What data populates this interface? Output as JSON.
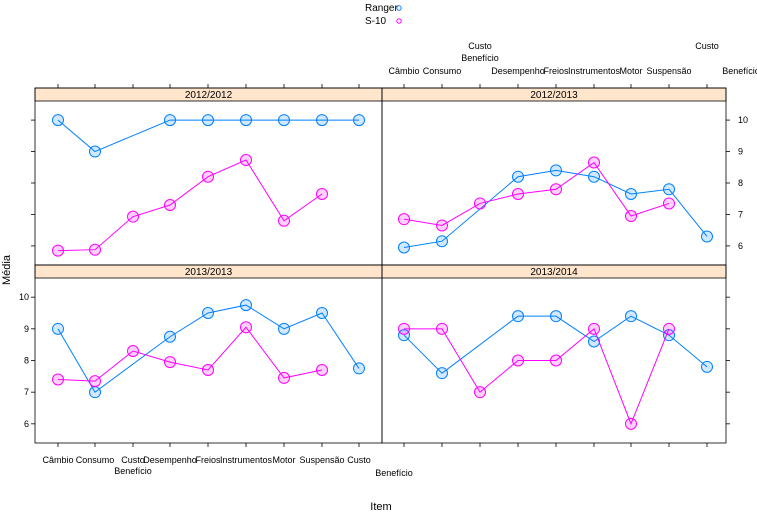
{
  "chart_data": {
    "type": "line",
    "xlabel": "Item",
    "ylabel": "Média",
    "ylim": [
      5.6,
      10.4
    ],
    "y_ticks": [
      6,
      7,
      8,
      9,
      10
    ],
    "categories_top": [
      "Câmbio",
      "Consumo",
      "Custo Benefício",
      "Desempenho",
      "Freios",
      "Instrumentos",
      "Motor",
      "Suspensão",
      "Custo Benefício"
    ],
    "categories_bottom": [
      "Câmbio",
      "Consumo",
      "Custo Benefício",
      "Desempenho",
      "Freios",
      "Instrumentos",
      "Motor",
      "Suspensão",
      "Custo Benefício"
    ],
    "legend": {
      "placement": "top-center",
      "entries": [
        {
          "name": "Ranger",
          "color": "#0080ff"
        },
        {
          "name": "S-10",
          "color": "#ff00ff"
        }
      ]
    },
    "panels": [
      {
        "title": "2012/2012",
        "series": [
          {
            "name": "Ranger",
            "values": [
              10,
              9,
              null,
              10,
              10,
              10,
              10,
              10,
              10
            ]
          },
          {
            "name": "S-10",
            "values": [
              5.85,
              5.88,
              6.93,
              7.3,
              8.2,
              8.73,
              6.8,
              7.65,
              null
            ]
          }
        ]
      },
      {
        "title": "2012/2013",
        "series": [
          {
            "name": "Ranger",
            "values": [
              5.95,
              6.15,
              null,
              8.2,
              8.4,
              8.2,
              7.65,
              7.8,
              6.3
            ]
          },
          {
            "name": "S-10",
            "values": [
              6.85,
              6.65,
              7.35,
              7.65,
              7.8,
              8.65,
              6.95,
              7.35,
              null
            ]
          }
        ]
      },
      {
        "title": "2013/2013",
        "series": [
          {
            "name": "Ranger",
            "values": [
              9,
              7,
              null,
              8.75,
              9.5,
              9.75,
              9,
              9.5,
              7.75
            ]
          },
          {
            "name": "S-10",
            "values": [
              7.4,
              7.35,
              8.3,
              7.95,
              7.7,
              9.05,
              7.45,
              7.7,
              null
            ]
          }
        ]
      },
      {
        "title": "2013/2014",
        "series": [
          {
            "name": "Ranger",
            "values": [
              8.8,
              7.6,
              null,
              9.4,
              9.4,
              8.6,
              9.4,
              8.8,
              7.8
            ]
          },
          {
            "name": "S-10",
            "values": [
              9,
              9,
              7,
              8,
              8,
              9,
              6,
              9,
              null
            ]
          }
        ]
      }
    ]
  }
}
